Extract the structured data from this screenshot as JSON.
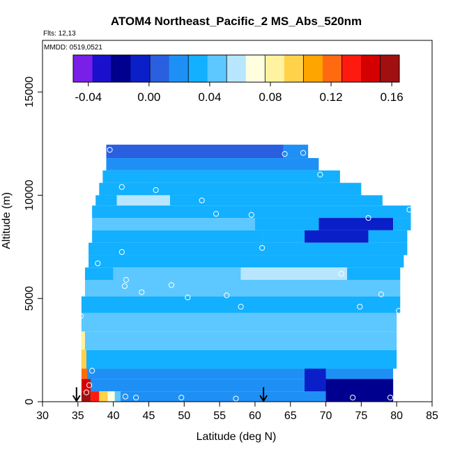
{
  "chart_data": {
    "type": "heatmap",
    "title": "ATOM4 Northeast_Pacific_2 MS_Abs_520nm",
    "annotations": [
      "Flts: 12,13",
      "MMDD: 0519,0521"
    ],
    "xlabel": "Latitude (deg N)",
    "ylabel": "Altitude (m)",
    "xlim": [
      30,
      85
    ],
    "ylim": [
      0,
      17500
    ],
    "xticks": [
      "30",
      "35",
      "40",
      "45",
      "50",
      "55",
      "60",
      "65",
      "70",
      "75",
      "80",
      "85"
    ],
    "yticks": [
      "0",
      "5000",
      "10000",
      "15000"
    ],
    "grid": false,
    "colorbar": {
      "placement": "top",
      "min": -0.05,
      "max": 0.165,
      "tick_values": [
        -0.04,
        0.0,
        0.04,
        0.08,
        0.12,
        0.16
      ],
      "tick_labels": [
        "-0.04",
        "0.00",
        "0.04",
        "0.08",
        "0.12",
        "0.16"
      ],
      "colors": [
        "#7A1FE8",
        "#1A10CC",
        "#00008F",
        "#0A1FC8",
        "#2A5FE0",
        "#1E90F5",
        "#12B0FF",
        "#5CC8FF",
        "#B8E6FF",
        "#FFFFE0",
        "#FFF2A0",
        "#FFD24A",
        "#FFA500",
        "#FF6A10",
        "#FF1A10",
        "#D40000",
        "#A01010"
      ]
    },
    "field": {
      "cells": [
        {
          "x0": 39.0,
          "x1": 64.0,
          "y0": 11800,
          "y1": 12450,
          "v": 0.008
        },
        {
          "x0": 64.0,
          "x1": 67.5,
          "y0": 11800,
          "y1": 12450,
          "v": 0.022
        },
        {
          "x0": 39.0,
          "x1": 69.0,
          "y0": 11200,
          "y1": 11800,
          "v": 0.018
        },
        {
          "x0": 38.5,
          "x1": 72.0,
          "y0": 10600,
          "y1": 11200,
          "v": 0.028
        },
        {
          "x0": 38.0,
          "x1": 75.0,
          "y0": 10000,
          "y1": 10600,
          "v": 0.036
        },
        {
          "x0": 37.5,
          "x1": 40.5,
          "y0": 9500,
          "y1": 10000,
          "v": 0.03
        },
        {
          "x0": 40.5,
          "x1": 48.0,
          "y0": 9500,
          "y1": 10000,
          "v": 0.06
        },
        {
          "x0": 48.0,
          "x1": 78.0,
          "y0": 9500,
          "y1": 10000,
          "v": 0.034
        },
        {
          "x0": 37.0,
          "x1": 82.0,
          "y0": 8900,
          "y1": 9500,
          "v": 0.036
        },
        {
          "x0": 37.0,
          "x1": 60.0,
          "y0": 8300,
          "y1": 8900,
          "v": 0.044
        },
        {
          "x0": 60.0,
          "x1": 69.0,
          "y0": 8300,
          "y1": 8900,
          "v": 0.03
        },
        {
          "x0": 69.0,
          "x1": 79.5,
          "y0": 8300,
          "y1": 8900,
          "v": -0.012
        },
        {
          "x0": 79.5,
          "x1": 82.0,
          "y0": 8300,
          "y1": 8900,
          "v": 0.03
        },
        {
          "x0": 37.0,
          "x1": 61.0,
          "y0": 7700,
          "y1": 8300,
          "v": 0.038
        },
        {
          "x0": 61.0,
          "x1": 67.0,
          "y0": 7700,
          "y1": 8300,
          "v": 0.034
        },
        {
          "x0": 67.0,
          "x1": 76.0,
          "y0": 7700,
          "y1": 8300,
          "v": -0.004
        },
        {
          "x0": 76.0,
          "x1": 81.5,
          "y0": 7700,
          "y1": 8300,
          "v": 0.03
        },
        {
          "x0": 36.5,
          "x1": 81.5,
          "y0": 7100,
          "y1": 7700,
          "v": 0.038
        },
        {
          "x0": 36.5,
          "x1": 81.0,
          "y0": 6500,
          "y1": 7100,
          "v": 0.036
        },
        {
          "x0": 36.0,
          "x1": 40.0,
          "y0": 5900,
          "y1": 6500,
          "v": 0.034
        },
        {
          "x0": 40.0,
          "x1": 58.0,
          "y0": 5900,
          "y1": 6500,
          "v": 0.048
        },
        {
          "x0": 58.0,
          "x1": 73.0,
          "y0": 5900,
          "y1": 6500,
          "v": 0.056
        },
        {
          "x0": 73.0,
          "x1": 80.5,
          "y0": 5900,
          "y1": 6500,
          "v": 0.03
        },
        {
          "x0": 36.0,
          "x1": 80.5,
          "y0": 5100,
          "y1": 5900,
          "v": 0.04
        },
        {
          "x0": 35.5,
          "x1": 80.5,
          "y0": 4300,
          "y1": 5100,
          "v": 0.036
        },
        {
          "x0": 35.5,
          "x1": 80.0,
          "y0": 3400,
          "y1": 4300,
          "v": 0.04
        },
        {
          "x0": 35.5,
          "x1": 80.0,
          "y0": 2500,
          "y1": 3400,
          "v": 0.04
        },
        {
          "x0": 35.5,
          "x1": 36.0,
          "y0": 2500,
          "y1": 3400,
          "v": 0.078
        },
        {
          "x0": 35.5,
          "x1": 80.0,
          "y0": 1600,
          "y1": 2500,
          "v": 0.036
        },
        {
          "x0": 35.5,
          "x1": 36.2,
          "y0": 1600,
          "y1": 2500,
          "v": 0.095
        },
        {
          "x0": 36.0,
          "x1": 79.5,
          "y0": 1100,
          "y1": 1600,
          "v": 0.018
        },
        {
          "x0": 35.5,
          "x1": 36.3,
          "y0": 1100,
          "y1": 1600,
          "v": 0.12
        },
        {
          "x0": 36.0,
          "x1": 79.5,
          "y0": 500,
          "y1": 1100,
          "v": 0.014
        },
        {
          "x0": 35.5,
          "x1": 36.8,
          "y0": 500,
          "y1": 1100,
          "v": 0.145
        },
        {
          "x0": 41.0,
          "x1": 79.5,
          "y0": 0,
          "y1": 500,
          "v": 0.02
        },
        {
          "x0": 35.5,
          "x1": 36.8,
          "y0": 0,
          "y1": 500,
          "v": 0.16
        },
        {
          "x0": 36.8,
          "x1": 38.0,
          "y0": 0,
          "y1": 500,
          "v": 0.135
        },
        {
          "x0": 38.0,
          "x1": 39.2,
          "y0": 0,
          "y1": 500,
          "v": 0.1
        },
        {
          "x0": 39.2,
          "x1": 40.2,
          "y0": 0,
          "y1": 500,
          "v": 0.075
        },
        {
          "x0": 40.2,
          "x1": 41.0,
          "y0": 0,
          "y1": 500,
          "v": 0.05
        },
        {
          "x0": 70.0,
          "x1": 79.5,
          "y0": 0,
          "y1": 1100,
          "v": -0.02
        },
        {
          "x0": 67.0,
          "x1": 70.0,
          "y0": 500,
          "y1": 1600,
          "v": 0.0
        }
      ]
    },
    "sample_points": [
      {
        "x": 39.5,
        "y": 12200
      },
      {
        "x": 64.2,
        "y": 12000
      },
      {
        "x": 66.8,
        "y": 12050
      },
      {
        "x": 69.2,
        "y": 11000
      },
      {
        "x": 41.2,
        "y": 10400
      },
      {
        "x": 46.0,
        "y": 10250
      },
      {
        "x": 52.5,
        "y": 9750
      },
      {
        "x": 54.5,
        "y": 9100
      },
      {
        "x": 59.5,
        "y": 9050
      },
      {
        "x": 76.0,
        "y": 8900
      },
      {
        "x": 81.8,
        "y": 9300
      },
      {
        "x": 61.0,
        "y": 7450
      },
      {
        "x": 41.2,
        "y": 7250
      },
      {
        "x": 37.8,
        "y": 6700
      },
      {
        "x": 72.2,
        "y": 6200
      },
      {
        "x": 41.8,
        "y": 5900
      },
      {
        "x": 41.6,
        "y": 5600
      },
      {
        "x": 44.0,
        "y": 5300
      },
      {
        "x": 48.2,
        "y": 5650
      },
      {
        "x": 50.5,
        "y": 5050
      },
      {
        "x": 56.0,
        "y": 5150
      },
      {
        "x": 58.0,
        "y": 4600
      },
      {
        "x": 74.8,
        "y": 4600
      },
      {
        "x": 77.8,
        "y": 5200
      },
      {
        "x": 80.3,
        "y": 4400
      },
      {
        "x": 35.4,
        "y": 4150
      },
      {
        "x": 37.0,
        "y": 1500
      },
      {
        "x": 36.6,
        "y": 800
      },
      {
        "x": 36.2,
        "y": 450
      },
      {
        "x": 41.7,
        "y": 250
      },
      {
        "x": 43.2,
        "y": 200
      },
      {
        "x": 49.6,
        "y": 200
      },
      {
        "x": 57.3,
        "y": 150
      },
      {
        "x": 73.8,
        "y": 200
      },
      {
        "x": 79.1,
        "y": 200
      }
    ],
    "arrows": [
      {
        "x": 34.8,
        "y_top": 700,
        "y_bottom": 0
      },
      {
        "x": 61.2,
        "y_top": 700,
        "y_bottom": 0
      }
    ]
  }
}
